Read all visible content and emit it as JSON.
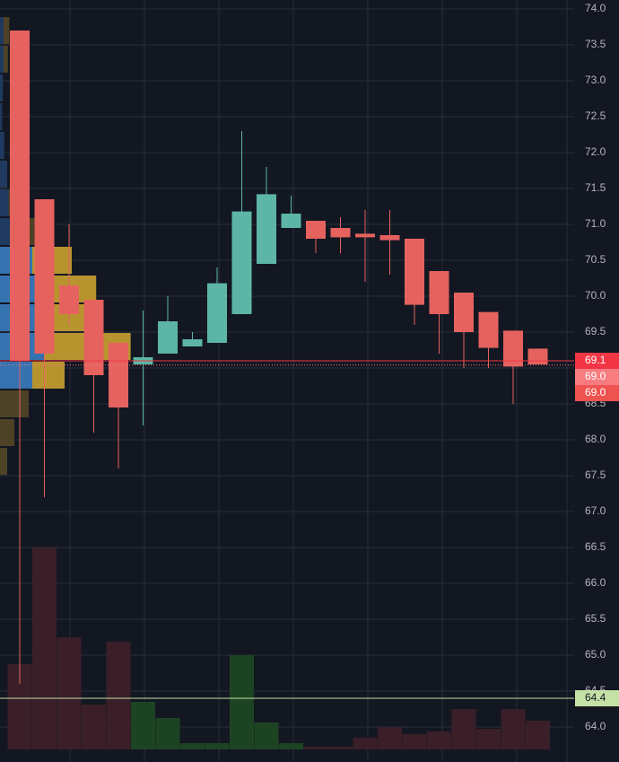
{
  "chart_data": {
    "type": "candlestick",
    "categories": [
      null,
      null,
      null,
      null,
      null,
      null,
      null,
      null,
      null,
      null,
      null,
      null,
      null,
      null,
      null,
      null,
      null,
      null,
      null,
      null,
      null,
      null
    ],
    "open": [
      73.7,
      71.35,
      70.15,
      69.95,
      69.35,
      69.05,
      69.2,
      69.3,
      69.35,
      69.75,
      70.45,
      70.95,
      71.05,
      70.95,
      70.87,
      70.85,
      70.8,
      70.35,
      70.05,
      69.78,
      69.52,
      69.27
    ],
    "high": [
      73.7,
      71.35,
      71.0,
      69.95,
      69.35,
      69.8,
      70.0,
      69.5,
      70.4,
      72.3,
      71.8,
      71.4,
      71.05,
      71.1,
      71.2,
      71.2,
      70.8,
      70.35,
      70.05,
      69.78,
      69.52,
      69.27
    ],
    "low": [
      64.6,
      67.2,
      69.6,
      68.1,
      67.6,
      68.2,
      69.2,
      69.3,
      69.35,
      69.75,
      70.45,
      70.95,
      70.6,
      70.6,
      70.2,
      70.3,
      69.6,
      69.2,
      69.0,
      69.0,
      68.5,
      69.05
    ],
    "close": [
      69.1,
      69.2,
      69.75,
      68.9,
      68.45,
      69.15,
      69.65,
      69.4,
      70.18,
      71.18,
      71.42,
      71.15,
      70.8,
      70.82,
      70.82,
      70.78,
      69.88,
      69.75,
      69.5,
      69.28,
      69.02,
      69.05
    ],
    "up_color": "#5cb5a6",
    "down_color": "#e5625f",
    "volume": {
      "values": [
        95,
        225,
        125,
        50,
        120,
        53,
        35,
        7,
        7,
        105,
        30,
        7,
        3,
        3,
        13,
        25,
        17,
        20,
        45,
        23,
        45,
        32
      ],
      "up_color": "#1d4422",
      "down_color": "#3a1f29"
    },
    "volume_profile": {
      "rows": [
        {
          "low": 73.5,
          "high": 73.9,
          "up": 5,
          "down": 8
        },
        {
          "low": 73.1,
          "high": 73.5,
          "up": 5,
          "down": 6
        },
        {
          "low": 72.7,
          "high": 73.1,
          "up": 4,
          "down": 0
        },
        {
          "low": 72.3,
          "high": 72.7,
          "up": 3,
          "down": 0
        },
        {
          "low": 71.9,
          "high": 72.3,
          "up": 6,
          "down": 0
        },
        {
          "low": 71.5,
          "high": 71.9,
          "up": 10,
          "down": 0
        },
        {
          "low": 71.1,
          "high": 71.5,
          "up": 12,
          "down": 28
        },
        {
          "low": 70.7,
          "high": 71.1,
          "up": 18,
          "down": 30
        },
        {
          "low": 70.3,
          "high": 70.7,
          "up": 45,
          "down": 55
        },
        {
          "low": 69.9,
          "high": 70.3,
          "up": 62,
          "down": 72
        },
        {
          "low": 69.5,
          "high": 69.9,
          "up": 70,
          "down": 65
        },
        {
          "low": 69.1,
          "high": 69.5,
          "up": 62,
          "down": 120
        },
        {
          "low": 68.7,
          "high": 69.1,
          "up": 45,
          "down": 45
        },
        {
          "low": 68.3,
          "high": 68.7,
          "up": 0,
          "down": 40
        },
        {
          "low": 67.9,
          "high": 68.3,
          "up": 0,
          "down": 20
        },
        {
          "low": 67.5,
          "high": 67.9,
          "up": 0,
          "down": 10
        }
      ],
      "value_area": [
        68.7,
        70.7
      ],
      "colors": {
        "up_in": "#3572b0",
        "down_in": "#b8942f",
        "up_out": "#1f3a5e",
        "down_out": "#4d4226"
      }
    },
    "ylim": [
      63.7,
      74.1
    ],
    "yticks": [
      {
        "value": 74,
        "label": "74.0"
      },
      {
        "value": 73.5,
        "label": "73.5"
      },
      {
        "value": 73,
        "label": "73.0"
      },
      {
        "value": 72.5,
        "label": "72.5"
      },
      {
        "value": 72,
        "label": "72.0"
      },
      {
        "value": 71.5,
        "label": "71.5"
      },
      {
        "value": 71,
        "label": "71.0"
      },
      {
        "value": 70.5,
        "label": "70.5"
      },
      {
        "value": 70,
        "label": "70.0"
      },
      {
        "value": 69.5,
        "label": "69.5"
      },
      {
        "value": 69,
        "label": "69.0"
      },
      {
        "value": 68.5,
        "label": "68.5"
      },
      {
        "value": 68,
        "label": "68.0"
      },
      {
        "value": 67.5,
        "label": "67.5"
      },
      {
        "value": 67,
        "label": "67.0"
      },
      {
        "value": 66.5,
        "label": "66.5"
      },
      {
        "value": 66,
        "label": "66.0"
      },
      {
        "value": 65.5,
        "label": "65.5"
      },
      {
        "value": 65,
        "label": "65.0"
      },
      {
        "value": 64.5,
        "label": "64.5"
      },
      {
        "value": 64,
        "label": "64.0"
      }
    ],
    "grid": true,
    "price_lines": [
      {
        "value": 69.1,
        "label": "69.1",
        "color": "#f23645",
        "text_color": "#ffffff",
        "style": "solid"
      },
      {
        "value": 69.04,
        "label": "69.0",
        "color": "#f77c80",
        "text_color": "#ffffff",
        "style": "dotted"
      },
      {
        "value": 69.02,
        "label": "69.0",
        "color": "#ef5350",
        "text_color": "#ffffff",
        "style": "none"
      },
      {
        "value": 64.4,
        "label": "64.4",
        "color": "#c5e1a5",
        "text_color": "#131722",
        "style": "solid"
      }
    ]
  }
}
